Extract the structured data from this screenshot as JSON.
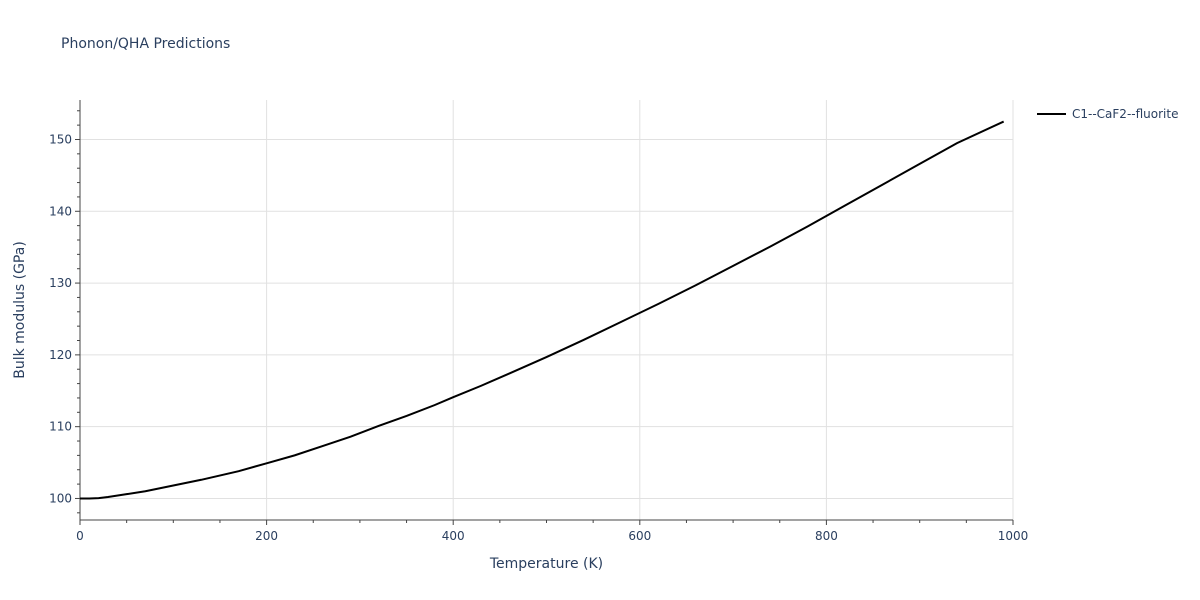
{
  "chart_data": {
    "type": "line",
    "title": "Phonon/QHA Predictions",
    "xlabel": "Temperature (K)",
    "ylabel": "Bulk modulus (GPa)",
    "xlim": [
      0,
      1000
    ],
    "ylim": [
      97,
      155.5
    ],
    "x_ticks": [
      0,
      200,
      400,
      600,
      800,
      1000
    ],
    "y_ticks": [
      100,
      110,
      120,
      130,
      140,
      150
    ],
    "x_tick_labels": [
      "0",
      "200",
      "400",
      "600",
      "800",
      "1000"
    ],
    "y_tick_labels": [
      "100",
      "110",
      "120",
      "130",
      "140",
      "150"
    ],
    "grid": true,
    "legend": "right",
    "series": [
      {
        "name": "C1--CaF2--fluorite",
        "color": "#000000",
        "x": [
          0,
          10,
          20,
          30,
          50,
          70,
          100,
          130,
          170,
          200,
          230,
          260,
          290,
          320,
          350,
          380,
          400,
          430,
          460,
          500,
          540,
          580,
          620,
          660,
          700,
          740,
          780,
          820,
          860,
          900,
          940,
          990
        ],
        "y": [
          100.0,
          100.0,
          100.05,
          100.2,
          100.6,
          101.0,
          101.8,
          102.6,
          103.8,
          104.9,
          106.0,
          107.3,
          108.6,
          110.1,
          111.5,
          113.0,
          114.1,
          115.7,
          117.4,
          119.7,
          122.1,
          124.6,
          127.1,
          129.7,
          132.4,
          135.1,
          137.9,
          140.8,
          143.7,
          146.6,
          149.5,
          152.5
        ]
      }
    ]
  }
}
